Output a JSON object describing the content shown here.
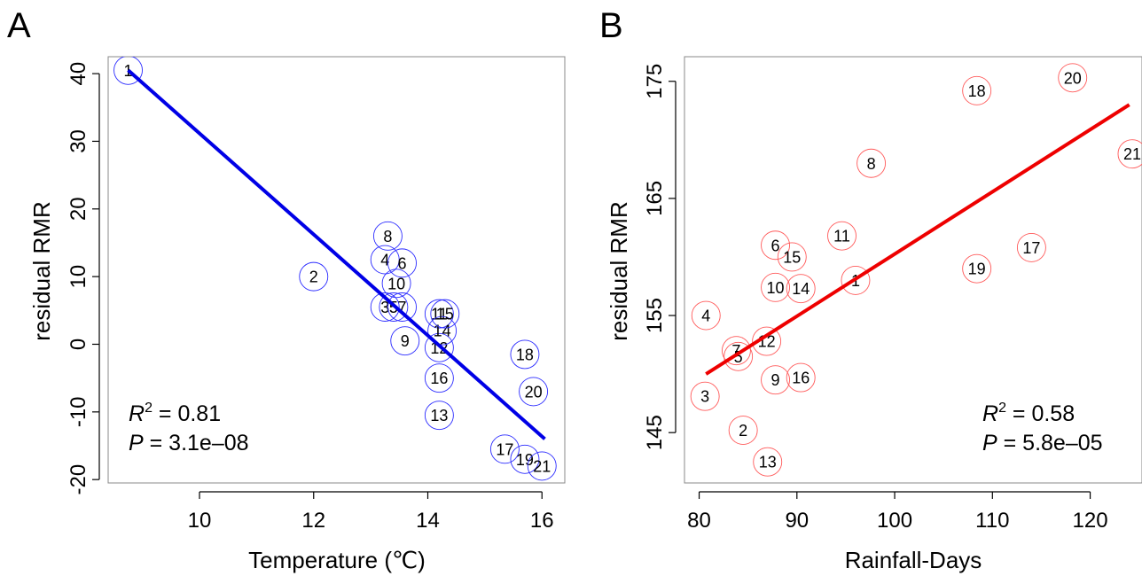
{
  "chart_data": [
    {
      "type": "scatter",
      "panel": "A",
      "xlabel": "Temperature (℃)",
      "ylabel": "residual RMR",
      "xlim": [
        8.4,
        16.4
      ],
      "ylim": [
        -20.5,
        42.5
      ],
      "xticks": [
        10,
        12,
        14,
        16
      ],
      "yticks": [
        -20,
        -10,
        0,
        10,
        20,
        30,
        40
      ],
      "marker_color": "#2b2bff",
      "line_color": "#0000e6",
      "regression": {
        "x": [
          8.75,
          16.05
        ],
        "y": [
          40.5,
          -14
        ]
      },
      "stats": {
        "r2_label": "R",
        "r2_sup": "2",
        "r2_text": " = 0.81",
        "p_label": "P",
        "p_text": " = 3.1e–08"
      },
      "points": [
        {
          "label": "1",
          "x": 8.75,
          "y": 40.5
        },
        {
          "label": "2",
          "x": 12.0,
          "y": 10.0
        },
        {
          "label": "3",
          "x": 13.25,
          "y": 5.5
        },
        {
          "label": "4",
          "x": 13.25,
          "y": 12.5
        },
        {
          "label": "5",
          "x": 13.4,
          "y": 5.5
        },
        {
          "label": "6",
          "x": 13.55,
          "y": 12.0
        },
        {
          "label": "7",
          "x": 13.55,
          "y": 5.5
        },
        {
          "label": "8",
          "x": 13.3,
          "y": 16.0
        },
        {
          "label": "9",
          "x": 13.6,
          "y": 0.5
        },
        {
          "label": "10",
          "x": 13.45,
          "y": 9.0
        },
        {
          "label": "11",
          "x": 14.2,
          "y": 4.5
        },
        {
          "label": "12",
          "x": 14.2,
          "y": -0.5
        },
        {
          "label": "13",
          "x": 14.2,
          "y": -10.5
        },
        {
          "label": "14",
          "x": 14.25,
          "y": 2.0
        },
        {
          "label": "15",
          "x": 14.3,
          "y": 4.5
        },
        {
          "label": "16",
          "x": 14.2,
          "y": -5.0
        },
        {
          "label": "17",
          "x": 15.35,
          "y": -15.5
        },
        {
          "label": "18",
          "x": 15.7,
          "y": -1.5
        },
        {
          "label": "19",
          "x": 15.7,
          "y": -17.0
        },
        {
          "label": "20",
          "x": 15.85,
          "y": -7.0
        },
        {
          "label": "21",
          "x": 16.0,
          "y": -18.0
        }
      ]
    },
    {
      "type": "scatter",
      "panel": "B",
      "xlabel": "Rainfall-Days",
      "ylabel": "residual RMR",
      "xlim": [
        78.5,
        125.3
      ],
      "ylim": [
        140.7,
        177.1
      ],
      "xticks": [
        80,
        90,
        100,
        110,
        120
      ],
      "yticks": [
        145,
        155,
        165,
        175
      ],
      "marker_color": "#ff5a5a",
      "line_color": "#ee0000",
      "regression": {
        "x": [
          80.7,
          124.0
        ],
        "y": [
          150.0,
          173.0
        ]
      },
      "stats": {
        "r2_label": "R",
        "r2_sup": "2",
        "r2_text": " = 0.58",
        "p_label": "P",
        "p_text": " = 5.8e–05"
      },
      "points": [
        {
          "label": "1",
          "x": 96.0,
          "y": 158.0
        },
        {
          "label": "2",
          "x": 84.5,
          "y": 145.2
        },
        {
          "label": "3",
          "x": 80.6,
          "y": 148.1
        },
        {
          "label": "4",
          "x": 80.7,
          "y": 155.0
        },
        {
          "label": "5",
          "x": 84.0,
          "y": 151.5
        },
        {
          "label": "6",
          "x": 87.8,
          "y": 161.0
        },
        {
          "label": "7",
          "x": 83.8,
          "y": 152.0
        },
        {
          "label": "8",
          "x": 97.6,
          "y": 168.0
        },
        {
          "label": "9",
          "x": 87.8,
          "y": 149.5
        },
        {
          "label": "10",
          "x": 87.8,
          "y": 157.4
        },
        {
          "label": "11",
          "x": 94.6,
          "y": 161.8
        },
        {
          "label": "12",
          "x": 86.9,
          "y": 152.8
        },
        {
          "label": "13",
          "x": 87.0,
          "y": 142.5
        },
        {
          "label": "14",
          "x": 90.4,
          "y": 157.3
        },
        {
          "label": "15",
          "x": 89.5,
          "y": 160.0
        },
        {
          "label": "16",
          "x": 90.4,
          "y": 149.7
        },
        {
          "label": "17",
          "x": 114.0,
          "y": 160.8
        },
        {
          "label": "18",
          "x": 108.4,
          "y": 174.2
        },
        {
          "label": "19",
          "x": 108.4,
          "y": 159.0
        },
        {
          "label": "20",
          "x": 118.2,
          "y": 175.3
        },
        {
          "label": "21",
          "x": 124.3,
          "y": 168.8
        }
      ]
    }
  ]
}
